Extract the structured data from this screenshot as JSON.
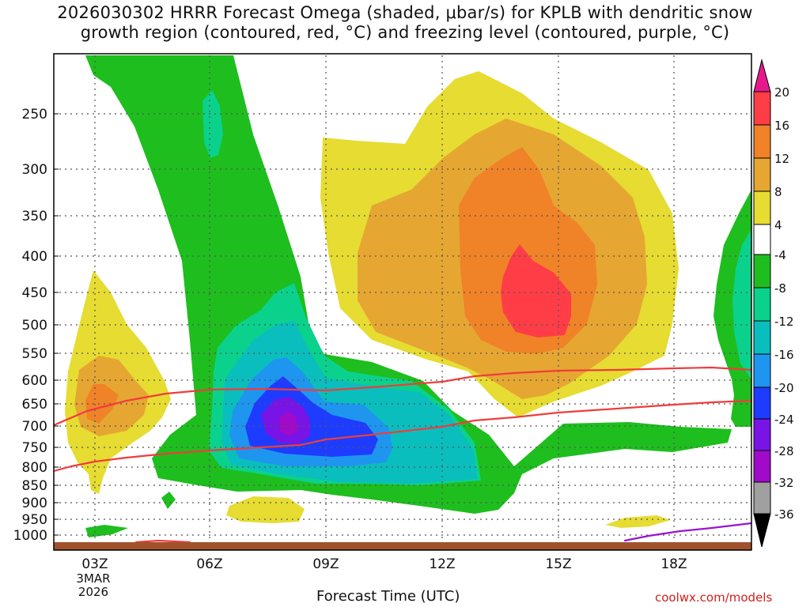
{
  "title": {
    "line1": "2026030302 HRRR Forecast Omega (shaded, μbar/s) for KPLB with dendritic snow",
    "line2": "growth region (contoured, red, °C) and freezing level (contoured, purple, °C)"
  },
  "chart_data": {
    "type": "heatmap",
    "title": "2026030302 HRRR Forecast Omega (shaded, μbar/s) for KPLB with dendritic snow growth region (contoured, red, °C) and freezing level (contoured, purple, °C)",
    "xlabel": "Forecast Time (UTC)",
    "ylabel": "",
    "x_tick_labels": [
      "03Z",
      "06Z",
      "09Z",
      "12Z",
      "15Z",
      "18Z"
    ],
    "x_date_label": [
      "3MAR",
      "2026"
    ],
    "y_tick_labels": [
      "250",
      "300",
      "350",
      "400",
      "450",
      "500",
      "550",
      "600",
      "650",
      "700",
      "750",
      "800",
      "850",
      "900",
      "950",
      "1000"
    ],
    "colorbar": {
      "labels": [
        "20",
        "16",
        "12",
        "8",
        "4",
        "-4",
        "-8",
        "-12",
        "-16",
        "-20",
        "-24",
        "-28",
        "-32",
        "-36"
      ],
      "colors": [
        "#ff3d46",
        "#f08228",
        "#e6a632",
        "#e6dc32",
        "#ffffff",
        "#1ebe1e",
        "#0ad28c",
        "#0abebe",
        "#1e96f0",
        "#1e3cff",
        "#7814e6",
        "#a00ac8",
        "#a0a0a0"
      ],
      "top_color": "#e6198c",
      "bottom_color": "#000000"
    },
    "series_colors": {
      "dendritic_contours": "#f03c3c",
      "freezing_level": "#9614d2",
      "ground": "#a0522d"
    }
  },
  "footer": {
    "credit": "coolwx.com/models"
  }
}
